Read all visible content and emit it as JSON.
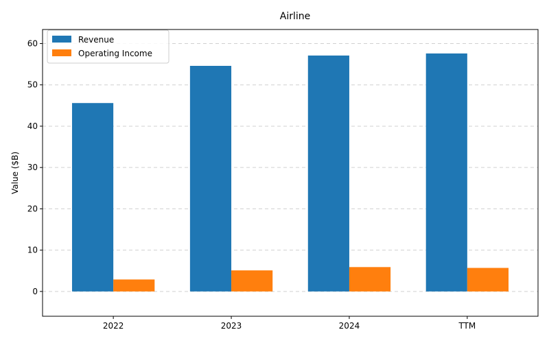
{
  "chart_data": {
    "type": "bar",
    "title": "Airline",
    "xlabel": "",
    "ylabel": "Value ($B)",
    "categories": [
      "2022",
      "2023",
      "2024",
      "TTM"
    ],
    "series": [
      {
        "name": "Revenue",
        "color": "#1f77b4",
        "values": [
          45.6,
          54.6,
          57.1,
          57.6
        ]
      },
      {
        "name": "Operating Income",
        "color": "#ff7f0e",
        "values": [
          2.9,
          5.1,
          5.9,
          5.7
        ]
      }
    ],
    "ylim": [
      -6,
      63.4
    ],
    "yticks": [
      0,
      10,
      20,
      30,
      40,
      50,
      60
    ],
    "grid": true,
    "legend_position": "top-left"
  }
}
